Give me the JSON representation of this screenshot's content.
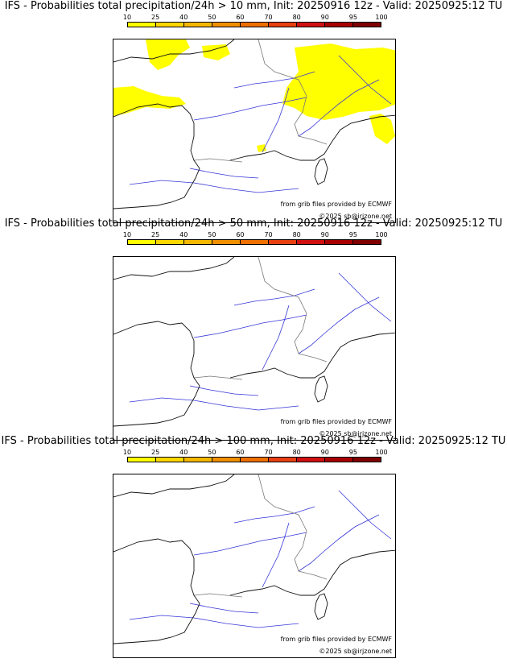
{
  "scale": {
    "ticks": [
      "10",
      "25",
      "40",
      "50",
      "60",
      "70",
      "80",
      "90",
      "95",
      "100"
    ],
    "colors": [
      "#ffff00",
      "#ffd700",
      "#f5b800",
      "#f09000",
      "#ee7000",
      "#e84010",
      "#d01010",
      "#a80000",
      "#800000",
      "#600000"
    ]
  },
  "credit": {
    "source": "from grib files provided by ECMWF",
    "copyright": "©2025 sb@irjzone.net"
  },
  "panels": [
    {
      "title": "IFS - Probabilities total precipitation/24h > 10 mm, Init: 20250916 12z - Valid: 20250925:12 TU",
      "has_rain": true
    },
    {
      "title": "IFS - Probabilities total precipitation/24h > 50 mm, Init: 20250916 12z - Valid: 20250925:12 TU",
      "has_rain": false
    },
    {
      "title": "IFS - Probabilities total precipitation/24h > 100 mm, Init: 20250916 12z - Valid: 20250925:12 TU",
      "has_rain": false
    }
  ]
}
